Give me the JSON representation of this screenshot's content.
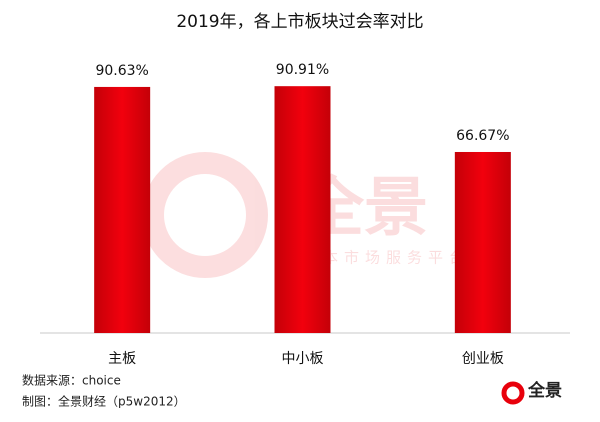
{
  "chart_data": {
    "type": "bar",
    "title": "2019年，各上市板块过会率对比",
    "categories": [
      "主板",
      "中小板",
      "创业板"
    ],
    "values": [
      90.63,
      90.91,
      66.67
    ],
    "value_labels": [
      "90.63%",
      "90.91%",
      "66.67%"
    ],
    "color": "#e8000b",
    "source": "数据来源：choice",
    "credit": "制图：全景财经（p5w2012）",
    "watermark": "全景",
    "watermark_subtitle": "资本市场服务平台",
    "logo": "全景"
  }
}
